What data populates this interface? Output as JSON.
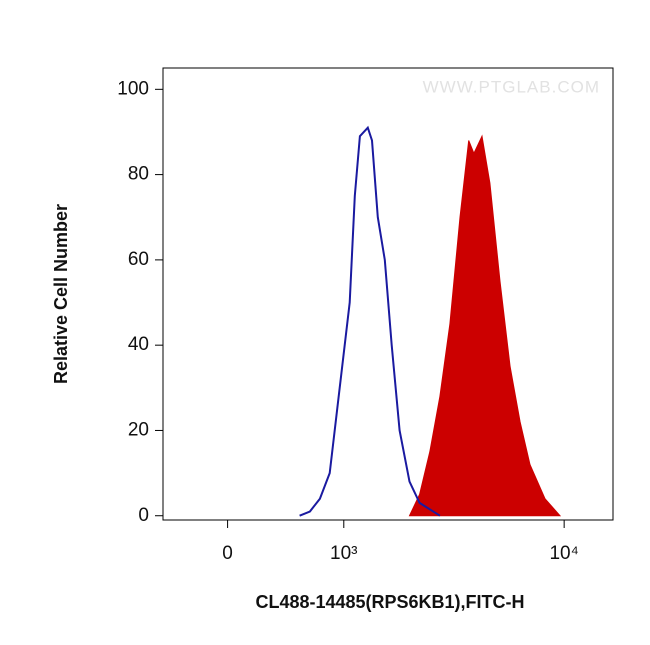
{
  "chart_data": {
    "type": "line",
    "xlabel": "CL488-14485(RPS6KB1),FITC-H",
    "ylabel": "Relative Cell Number",
    "watermark": "WWW.PTGLAB.COM",
    "xscale": "asinh",
    "xlim": [
      -480,
      16300
    ],
    "ylim": [
      -1,
      105
    ],
    "xticks": [
      {
        "value": 0,
        "label": "0"
      },
      {
        "value": 1000,
        "label": "10³"
      },
      {
        "value": 10000,
        "label": "10⁴"
      }
    ],
    "yticks": [
      0,
      20,
      40,
      60,
      80,
      100
    ],
    "series": [
      {
        "color": "#1a1aa0",
        "filled": false,
        "x": [
          544,
          638,
          735,
          838,
          951,
          1074,
          1140,
          1210,
          1323,
          1387,
          1480,
          1598,
          1722,
          1874,
          2081,
          2314,
          2854
        ],
        "values": [
          0,
          1,
          4,
          10,
          30,
          50,
          75,
          89,
          91,
          88,
          70,
          60,
          40,
          20,
          8,
          3,
          0
        ]
      },
      {
        "color": "#cc0000",
        "filled": true,
        "x": [
          2081,
          2314,
          2572,
          2854,
          3162,
          3503,
          3830,
          4038,
          4379,
          4747,
          5254,
          5817,
          6429,
          7103,
          8257,
          9591
        ],
        "values": [
          0,
          5,
          15,
          28,
          45,
          70,
          88,
          85,
          89,
          78,
          55,
          35,
          22,
          12,
          4,
          0
        ]
      }
    ]
  }
}
